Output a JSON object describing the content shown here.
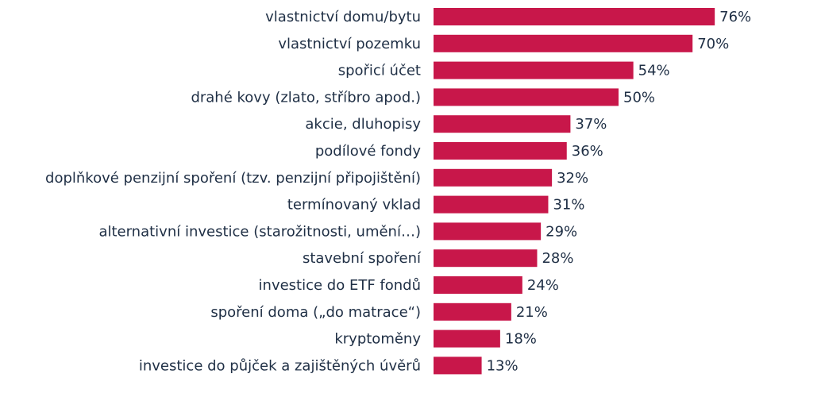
{
  "chart_data": {
    "type": "bar",
    "orientation": "horizontal",
    "categories": [
      "vlastnictví domu/bytu",
      "vlastnictví pozemku",
      "spořicí účet",
      "drahé kovy (zlato, stříbro apod.)",
      "akcie, dluhopisy",
      "podílové fondy",
      "doplňkové penzijní spoření (tzv. penzijní připojištění)",
      "termínovaný vklad",
      "alternativní investice (starožitnosti, umění…)",
      "stavební spoření",
      "investice do ETF fondů",
      "spoření doma („do matrace“)",
      "kryptoměny",
      "investice do půjček a zajištěných úvěrů"
    ],
    "values": [
      76,
      70,
      54,
      50,
      37,
      36,
      32,
      31,
      29,
      28,
      24,
      21,
      18,
      13
    ],
    "value_labels": [
      "76%",
      "70%",
      "54%",
      "50%",
      "37%",
      "36%",
      "32%",
      "31%",
      "29%",
      "28%",
      "24%",
      "21%",
      "18%",
      "13%"
    ],
    "unit": "%",
    "xlim": [
      0,
      100
    ],
    "grid": false,
    "legend": "none",
    "title": "",
    "xlabel": "",
    "ylabel": "",
    "bar_color": "#c8174a",
    "text_color": "#1f2f45"
  }
}
